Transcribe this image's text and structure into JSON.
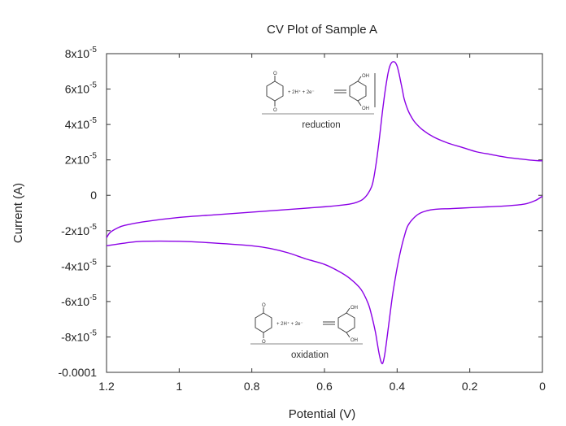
{
  "chart_data": {
    "type": "line",
    "title": "CV Plot of Sample A",
    "xlabel": "Potential (V)",
    "ylabel": "Current (A)",
    "xlim": [
      1.2,
      0
    ],
    "ylim": [
      -0.0001,
      8e-05
    ],
    "x_reversed": true,
    "grid": false,
    "x_ticks": [
      {
        "value": 1.2,
        "label": "1.2"
      },
      {
        "value": 1.0,
        "label": "1"
      },
      {
        "value": 0.8,
        "label": "0.8"
      },
      {
        "value": 0.6,
        "label": "0.6"
      },
      {
        "value": 0.4,
        "label": "0.4"
      },
      {
        "value": 0.2,
        "label": "0.2"
      },
      {
        "value": 0.0,
        "label": "0"
      }
    ],
    "y_ticks": [
      {
        "value": 8e-05,
        "mantissa": "8x10",
        "exp": "-5"
      },
      {
        "value": 6e-05,
        "mantissa": "6x10",
        "exp": "-5"
      },
      {
        "value": 4e-05,
        "mantissa": "4x10",
        "exp": "-5"
      },
      {
        "value": 2e-05,
        "mantissa": "2x10",
        "exp": "-5"
      },
      {
        "value": 0,
        "mantissa": "0",
        "exp": ""
      },
      {
        "value": -2e-05,
        "mantissa": "-2x10",
        "exp": "-5"
      },
      {
        "value": -4e-05,
        "mantissa": "-4x10",
        "exp": "-5"
      },
      {
        "value": -6e-05,
        "mantissa": "-6x10",
        "exp": "-5"
      },
      {
        "value": -8e-05,
        "mantissa": "-8x10",
        "exp": "-5"
      },
      {
        "value": -0.0001,
        "mantissa": "-0.0001",
        "exp": ""
      }
    ],
    "series": [
      {
        "color": "#8b00e6",
        "x": [
          1.2,
          1.19,
          1.17,
          1.15,
          1.1,
          1.0,
          0.9,
          0.8,
          0.7,
          0.6,
          0.55,
          0.52,
          0.5,
          0.49,
          0.48,
          0.47,
          0.465,
          0.46,
          0.455,
          0.45,
          0.445,
          0.44,
          0.435,
          0.43,
          0.425,
          0.42,
          0.415,
          0.41,
          0.405,
          0.4,
          0.395,
          0.39,
          0.385,
          0.38,
          0.37,
          0.36,
          0.35,
          0.33,
          0.3,
          0.26,
          0.22,
          0.18,
          0.14,
          0.1,
          0.06,
          0.03,
          0.01,
          0.0
        ],
        "y": [
          -2.4e-05,
          -2.1e-05,
          -1.85e-05,
          -1.7e-05,
          -1.5e-05,
          -1.25e-05,
          -1.1e-05,
          -9.5e-06,
          -8e-06,
          -6.5e-06,
          -5.5e-06,
          -4.5e-06,
          -3e-06,
          -1.5e-06,
          1e-06,
          5e-06,
          9e-06,
          1.5e-05,
          2.2e-05,
          3e-05,
          3.9e-05,
          4.8e-05,
          5.6e-05,
          6.3e-05,
          6.9e-05,
          7.3e-05,
          7.5e-05,
          7.55e-05,
          7.5e-05,
          7.3e-05,
          6.9e-05,
          6.4e-05,
          5.9e-05,
          5.4e-05,
          4.8e-05,
          4.4e-05,
          4.1e-05,
          3.7e-05,
          3.3e-05,
          2.95e-05,
          2.7e-05,
          2.45e-05,
          2.3e-05,
          2.15e-05,
          2.05e-05,
          1.98e-05,
          1.95e-05,
          1.95e-05
        ]
      },
      {
        "color": "#8b00e6",
        "x": [
          0.0,
          0.02,
          0.05,
          0.1,
          0.15,
          0.2,
          0.25,
          0.3,
          0.33,
          0.35,
          0.37,
          0.38,
          0.39,
          0.4,
          0.41,
          0.415,
          0.42,
          0.425,
          0.43,
          0.435,
          0.44,
          0.445,
          0.45,
          0.455,
          0.46,
          0.47,
          0.48,
          0.5,
          0.53,
          0.56,
          0.6,
          0.65,
          0.7,
          0.75,
          0.8,
          0.9,
          1.0,
          1.1,
          1.15,
          1.2
        ],
        "y": [
          -5e-07,
          -3e-06,
          -5e-06,
          -6e-06,
          -6.5e-06,
          -7e-06,
          -7.5e-06,
          -8e-06,
          -9.5e-06,
          -1.2e-05,
          -1.7e-05,
          -2.3e-05,
          -3.1e-05,
          -4.1e-05,
          -5.3e-05,
          -6e-05,
          -6.8e-05,
          -7.6e-05,
          -8.4e-05,
          -9.1e-05,
          -9.5e-05,
          -9.35e-05,
          -8.9e-05,
          -8.3e-05,
          -7.7e-05,
          -6.8e-05,
          -6.1e-05,
          -5.3e-05,
          -4.7e-05,
          -4.3e-05,
          -3.9e-05,
          -3.6e-05,
          -3.25e-05,
          -3e-05,
          -2.85e-05,
          -2.7e-05,
          -2.6e-05,
          -2.6e-05,
          -2.7e-05,
          -2.85e-05
        ]
      }
    ],
    "insets": {
      "top": {
        "caption": "reduction",
        "labels": {
          "o": "O",
          "h": "+ 2H⁺ + 2e⁻",
          "oh": "OH"
        }
      },
      "bottom": {
        "caption": "oxidation",
        "labels": {
          "o": "O",
          "h": "+ 2H⁺ + 2e⁻",
          "oh": "OH"
        }
      }
    }
  }
}
